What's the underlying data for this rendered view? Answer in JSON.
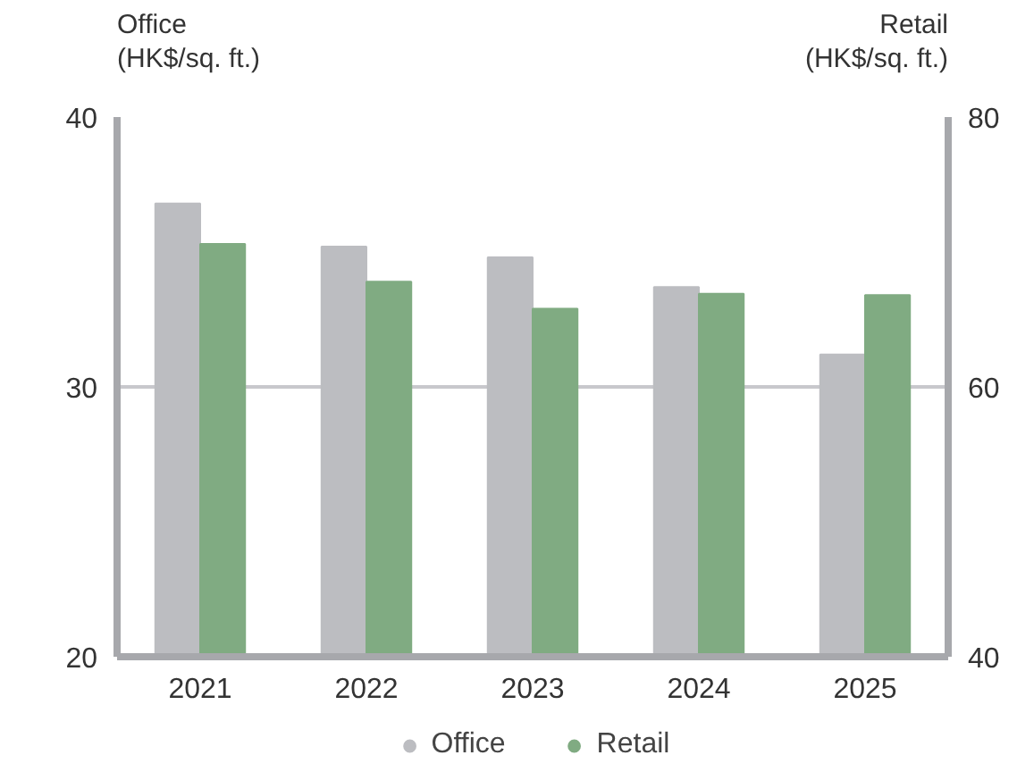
{
  "chart_data": {
    "type": "bar",
    "ylabel": "Office\n(HK$/sq. ft.)",
    "y2label": "Retail\n(HK$/sq. ft.)",
    "categories": [
      "2021",
      "2022",
      "2023",
      "2024",
      "2025"
    ],
    "series": [
      {
        "name": "Office",
        "color": "#bcbdc1",
        "values": [
          36.8,
          35.2,
          34.8,
          33.7,
          31.2
        ]
      },
      {
        "name": "Retail",
        "color": "#80ab82",
        "axis": "y2",
        "values": [
          70.6,
          67.8,
          65.8,
          66.9,
          66.8
        ]
      }
    ],
    "ylim": [
      20,
      40
    ],
    "yticks": [
      20,
      30,
      40
    ],
    "y2lim": [
      40,
      80
    ],
    "y2ticks": [
      40,
      60,
      80
    ],
    "grid": "y",
    "legend": "bottom"
  }
}
